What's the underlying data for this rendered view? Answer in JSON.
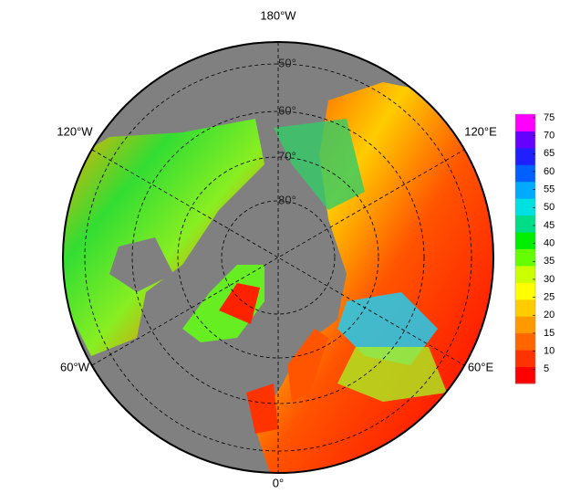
{
  "map": {
    "longitude_labels": [
      "180°W",
      "120°W",
      "120°E",
      "60°W",
      "60°E",
      "0°"
    ],
    "latitude_labels": [
      "50°",
      "60°",
      "70°",
      "80°"
    ]
  },
  "colorbar": {
    "lim": [
      1,
      76
    ],
    "ticks": [
      5,
      10,
      15,
      20,
      25,
      30,
      35,
      40,
      45,
      50,
      55,
      60,
      65,
      70,
      75
    ],
    "colors": [
      "#ff0000",
      "#ff3300",
      "#ff6600",
      "#ff9900",
      "#ffcc00",
      "#ffff00",
      "#ccff00",
      "#66ff00",
      "#00ee00",
      "#00dd88",
      "#00e0e0",
      "#00aaff",
      "#0060ff",
      "#2020ff",
      "#6600ff",
      "#ff00ff"
    ]
  }
}
